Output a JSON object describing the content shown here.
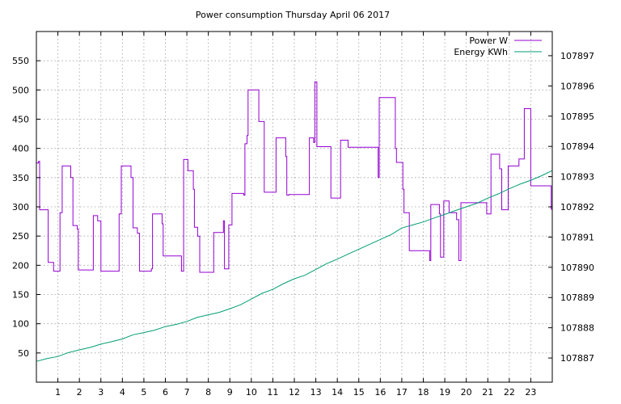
{
  "chart_data": {
    "type": "line",
    "title": "Power consumption Thursday April 06 2017",
    "grid": true,
    "legend_placement": "top-right",
    "x_axis": {
      "range": [
        0,
        24
      ],
      "ticks": [
        1,
        2,
        3,
        4,
        5,
        6,
        7,
        8,
        9,
        10,
        11,
        12,
        13,
        14,
        15,
        16,
        17,
        18,
        19,
        20,
        21,
        22,
        23
      ],
      "tick_labels": [
        "1",
        "2",
        "3",
        "4",
        "5",
        "6",
        "7",
        "8",
        "9",
        "10",
        "11",
        "12",
        "13",
        "14",
        "15",
        "16",
        "17",
        "18",
        "19",
        "20",
        "21",
        "22",
        "23"
      ]
    },
    "y_axis_left": {
      "range": [
        0,
        600
      ],
      "ticks": [
        50,
        100,
        150,
        200,
        250,
        300,
        350,
        400,
        450,
        500,
        550
      ],
      "tick_labels": [
        "50",
        "100",
        "150",
        "200",
        "250",
        "300",
        "350",
        "400",
        "450",
        "500",
        "550"
      ]
    },
    "y_axis_right": {
      "range": [
        107886.2,
        107897.8
      ],
      "ticks": [
        107887,
        107888,
        107889,
        107890,
        107891,
        107892,
        107893,
        107894,
        107895,
        107896,
        107897
      ],
      "tick_labels": [
        "107887",
        "107888",
        "107889",
        "107890",
        "107891",
        "107892",
        "107893",
        "107894",
        "107895",
        "107896",
        "107897"
      ]
    },
    "series": [
      {
        "name": "Power W",
        "axis": "left",
        "color": "#9400d3",
        "step": true,
        "points": [
          [
            0.0,
            375
          ],
          [
            0.1,
            378
          ],
          [
            0.15,
            295
          ],
          [
            0.55,
            205
          ],
          [
            0.8,
            190
          ],
          [
            1.1,
            290
          ],
          [
            1.2,
            370
          ],
          [
            1.6,
            350
          ],
          [
            1.7,
            268
          ],
          [
            1.9,
            262
          ],
          [
            1.95,
            192
          ],
          [
            2.65,
            285
          ],
          [
            2.85,
            276
          ],
          [
            3.0,
            190
          ],
          [
            3.85,
            288
          ],
          [
            3.95,
            370
          ],
          [
            4.4,
            350
          ],
          [
            4.5,
            264
          ],
          [
            4.7,
            255
          ],
          [
            4.8,
            190
          ],
          [
            5.35,
            194
          ],
          [
            5.4,
            288
          ],
          [
            5.85,
            271
          ],
          [
            5.9,
            216
          ],
          [
            6.75,
            190
          ],
          [
            6.85,
            381
          ],
          [
            7.05,
            362
          ],
          [
            7.3,
            330
          ],
          [
            7.35,
            265
          ],
          [
            7.5,
            250
          ],
          [
            7.6,
            188
          ],
          [
            8.25,
            256
          ],
          [
            8.7,
            276
          ],
          [
            8.75,
            194
          ],
          [
            8.95,
            269
          ],
          [
            9.1,
            323
          ],
          [
            9.65,
            320
          ],
          [
            9.7,
            408
          ],
          [
            9.8,
            422
          ],
          [
            9.85,
            500
          ],
          [
            10.35,
            446
          ],
          [
            10.6,
            325
          ],
          [
            11.15,
            418
          ],
          [
            11.6,
            386
          ],
          [
            11.65,
            320
          ],
          [
            11.75,
            321
          ],
          [
            12.7,
            418
          ],
          [
            12.9,
            410
          ],
          [
            12.95,
            514
          ],
          [
            13.05,
            403
          ],
          [
            13.7,
            315
          ],
          [
            14.15,
            414
          ],
          [
            14.5,
            402
          ],
          [
            15.9,
            350
          ],
          [
            15.95,
            487
          ],
          [
            16.7,
            400
          ],
          [
            16.75,
            376
          ],
          [
            17.05,
            330
          ],
          [
            17.1,
            290
          ],
          [
            17.35,
            225
          ],
          [
            18.3,
            208
          ],
          [
            18.35,
            304
          ],
          [
            18.75,
            288
          ],
          [
            18.8,
            214
          ],
          [
            18.95,
            310
          ],
          [
            19.2,
            290
          ],
          [
            19.55,
            278
          ],
          [
            19.65,
            208
          ],
          [
            19.75,
            307
          ],
          [
            20.95,
            288
          ],
          [
            21.15,
            390
          ],
          [
            21.55,
            365
          ],
          [
            21.65,
            295
          ],
          [
            21.95,
            370
          ],
          [
            22.45,
            382
          ],
          [
            22.7,
            468
          ],
          [
            23.0,
            336
          ],
          [
            23.95,
            296
          ]
        ]
      },
      {
        "name": "Energy KWh",
        "axis": "right",
        "color": "#009e73",
        "step": false,
        "points": [
          [
            0.0,
            107886.89
          ],
          [
            0.5,
            107886.98
          ],
          [
            1.0,
            107887.05
          ],
          [
            1.5,
            107887.18
          ],
          [
            2.0,
            107887.27
          ],
          [
            2.5,
            107887.35
          ],
          [
            3.0,
            107887.46
          ],
          [
            3.5,
            107887.54
          ],
          [
            4.0,
            107887.63
          ],
          [
            4.5,
            107887.77
          ],
          [
            5.0,
            107887.84
          ],
          [
            5.5,
            107887.92
          ],
          [
            6.0,
            107888.04
          ],
          [
            6.5,
            107888.11
          ],
          [
            7.0,
            107888.21
          ],
          [
            7.5,
            107888.35
          ],
          [
            8.0,
            107888.43
          ],
          [
            8.5,
            107888.51
          ],
          [
            9.0,
            107888.63
          ],
          [
            9.5,
            107888.76
          ],
          [
            10.0,
            107888.95
          ],
          [
            10.5,
            107889.14
          ],
          [
            11.0,
            107889.27
          ],
          [
            11.5,
            107889.46
          ],
          [
            12.0,
            107889.62
          ],
          [
            12.5,
            107889.74
          ],
          [
            13.0,
            107889.93
          ],
          [
            13.5,
            107890.12
          ],
          [
            14.0,
            107890.27
          ],
          [
            14.5,
            107890.44
          ],
          [
            15.0,
            107890.6
          ],
          [
            15.5,
            107890.76
          ],
          [
            16.0,
            107890.92
          ],
          [
            16.5,
            107891.08
          ],
          [
            17.0,
            107891.3
          ],
          [
            17.5,
            107891.4
          ],
          [
            18.0,
            107891.5
          ],
          [
            18.5,
            107891.63
          ],
          [
            19.0,
            107891.75
          ],
          [
            19.5,
            107891.88
          ],
          [
            20.0,
            107892.0
          ],
          [
            20.5,
            107892.12
          ],
          [
            21.0,
            107892.29
          ],
          [
            21.5,
            107892.43
          ],
          [
            22.0,
            107892.6
          ],
          [
            22.5,
            107892.75
          ],
          [
            23.0,
            107892.88
          ],
          [
            23.5,
            107893.03
          ],
          [
            24.0,
            107893.2
          ]
        ]
      }
    ]
  }
}
